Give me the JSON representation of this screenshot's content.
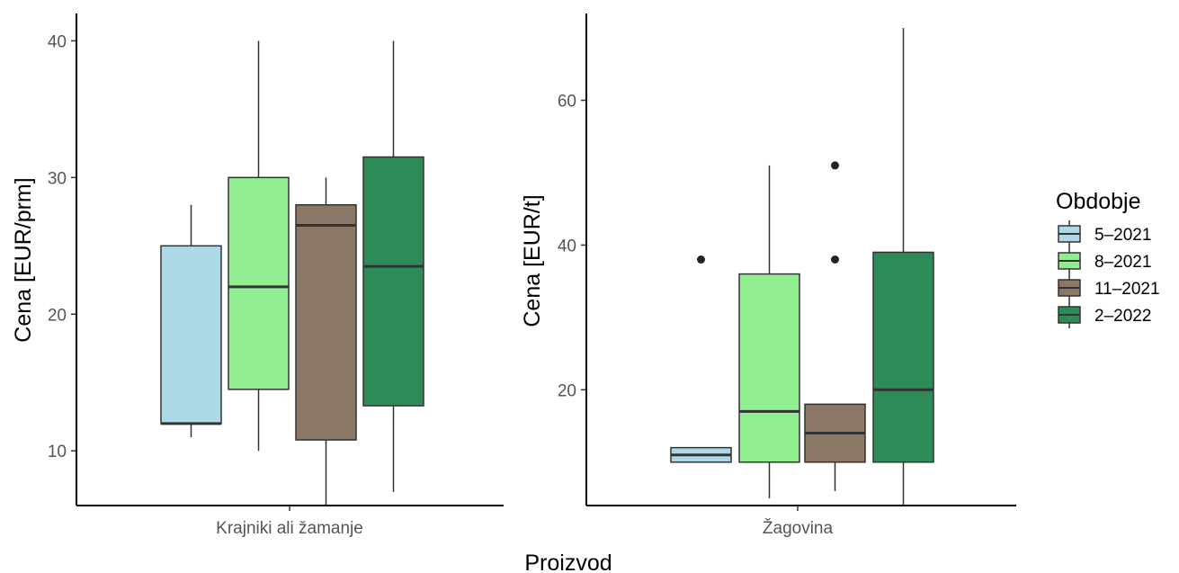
{
  "chart_data": [
    {
      "type": "boxplot",
      "ylabel": "Cena [EUR/prm]",
      "ylim": [
        6,
        42
      ],
      "yticks": [
        10,
        20,
        30,
        40
      ],
      "category": "Krajniki ali žamanje",
      "boxes": [
        {
          "series": "5–2021",
          "whisker_low": 11,
          "q1": 12,
          "median": 12,
          "q3": 25,
          "whisker_high": 28,
          "outliers": []
        },
        {
          "series": "8–2021",
          "whisker_low": 10,
          "q1": 14.5,
          "median": 22,
          "q3": 30,
          "whisker_high": 40,
          "outliers": []
        },
        {
          "series": "11–2021",
          "whisker_low": 6,
          "q1": 10.8,
          "median": 26.5,
          "q3": 28,
          "whisker_high": 30,
          "outliers": []
        },
        {
          "series": "2–2022",
          "whisker_low": 7,
          "q1": 13.3,
          "median": 23.5,
          "q3": 31.5,
          "whisker_high": 40,
          "outliers": []
        }
      ]
    },
    {
      "type": "boxplot",
      "ylabel": "Cena [EUR/t]",
      "ylim": [
        4,
        72
      ],
      "yticks": [
        20,
        40,
        60
      ],
      "category": "Žagovina",
      "boxes": [
        {
          "series": "5–2021",
          "whisker_low": 10,
          "q1": 10,
          "median": 11,
          "q3": 12,
          "whisker_high": 12,
          "outliers": [
            38
          ]
        },
        {
          "series": "8–2021",
          "whisker_low": 5,
          "q1": 10,
          "median": 17,
          "q3": 36,
          "whisker_high": 51,
          "outliers": []
        },
        {
          "series": "11–2021",
          "whisker_low": 6,
          "q1": 10,
          "median": 14,
          "q3": 18,
          "whisker_high": 18,
          "outliers": [
            38,
            51
          ]
        },
        {
          "series": "2–2022",
          "whisker_low": 4,
          "q1": 10,
          "median": 20,
          "q3": 39,
          "whisker_high": 70,
          "outliers": []
        }
      ]
    }
  ],
  "xlabel": "Proizvod",
  "legend": {
    "title": "Obdobje",
    "items": [
      {
        "label": "5–2021",
        "color": "#add8e6"
      },
      {
        "label": "8–2021",
        "color": "#90ee90"
      },
      {
        "label": "11–2021",
        "color": "#8b7765"
      },
      {
        "label": "2–2022",
        "color": "#2e8b57"
      }
    ]
  }
}
